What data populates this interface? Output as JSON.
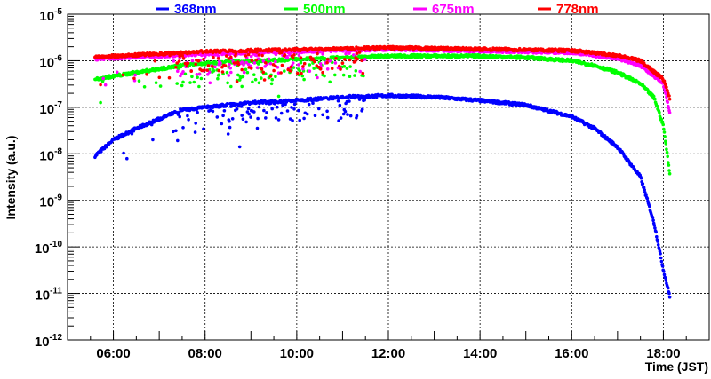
{
  "chart_data": {
    "type": "scatter",
    "title": "",
    "xlabel": "Time (JST)",
    "ylabel": "Intensity (a.u.)",
    "xlim": [
      5,
      19
    ],
    "ylim": [
      1e-12,
      1e-05
    ],
    "yscale": "log",
    "grid": true,
    "legend_placement": "top",
    "x_ticks": [
      6,
      8,
      10,
      12,
      14,
      16,
      18
    ],
    "x_tick_labels": [
      "06:00",
      "08:00",
      "10:00",
      "12:00",
      "14:00",
      "16:00",
      "18:00"
    ],
    "y_tick_labels": [
      {
        "base": "10",
        "exp": "-5"
      },
      {
        "base": "10",
        "exp": "-6"
      },
      {
        "base": "10",
        "exp": "-7"
      },
      {
        "base": "10",
        "exp": "-8"
      },
      {
        "base": "10",
        "exp": "-9"
      },
      {
        "base": "10",
        "exp": "-10"
      },
      {
        "base": "10",
        "exp": "-11"
      },
      {
        "base": "10",
        "exp": "-12"
      }
    ],
    "series": [
      {
        "name": "368nm",
        "color": "#0000ff",
        "noisy_until": 11.5,
        "x": [
          5.6,
          6.0,
          6.5,
          7.0,
          7.5,
          8.0,
          9.0,
          10.0,
          11.0,
          12.0,
          13.0,
          14.0,
          15.0,
          16.0,
          16.5,
          17.0,
          17.5,
          17.8,
          18.0,
          18.15
        ],
        "y": [
          9e-09,
          2e-08,
          3.5e-08,
          5.6e-08,
          8.9e-08,
          1e-07,
          1.26e-07,
          1.4e-07,
          1.66e-07,
          1.78e-07,
          1.66e-07,
          1.4e-07,
          1.12e-07,
          6.3e-08,
          3.5e-08,
          1.4e-08,
          3.2e-09,
          3.2e-10,
          3.2e-11,
          8e-12
        ]
      },
      {
        "name": "500nm",
        "color": "#00ff00",
        "noisy_until": 11.5,
        "x": [
          5.6,
          6.5,
          7.5,
          8.0,
          10.0,
          12.0,
          14.0,
          15.0,
          16.0,
          16.5,
          17.0,
          17.5,
          17.8,
          18.0,
          18.15
        ],
        "y": [
          4e-07,
          5.6e-07,
          7.9e-07,
          8.9e-07,
          1.07e-06,
          1.26e-06,
          1.26e-06,
          1.17e-06,
          1e-06,
          7.9e-07,
          5.6e-07,
          3.2e-07,
          1.6e-07,
          4e-08,
          3.2e-09
        ]
      },
      {
        "name": "675nm",
        "color": "#ff00ff",
        "noisy_until": 11.5,
        "x": [
          5.6,
          8.0,
          12.0,
          16.0,
          17.0,
          17.5,
          18.0,
          18.15
        ],
        "y": [
          1.1e-06,
          1.4e-06,
          1.78e-06,
          1.5e-06,
          1.12e-06,
          7.9e-07,
          3.2e-07,
          7e-08
        ]
      },
      {
        "name": "778nm",
        "color": "#ff0000",
        "noisy_until": 11.5,
        "x": [
          5.6,
          8.0,
          12.0,
          16.0,
          17.0,
          17.5,
          18.0,
          18.15
        ],
        "y": [
          1.2e-06,
          1.58e-06,
          1.9e-06,
          1.66e-06,
          1.3e-06,
          1e-06,
          4e-07,
          1.5e-07
        ]
      }
    ]
  }
}
